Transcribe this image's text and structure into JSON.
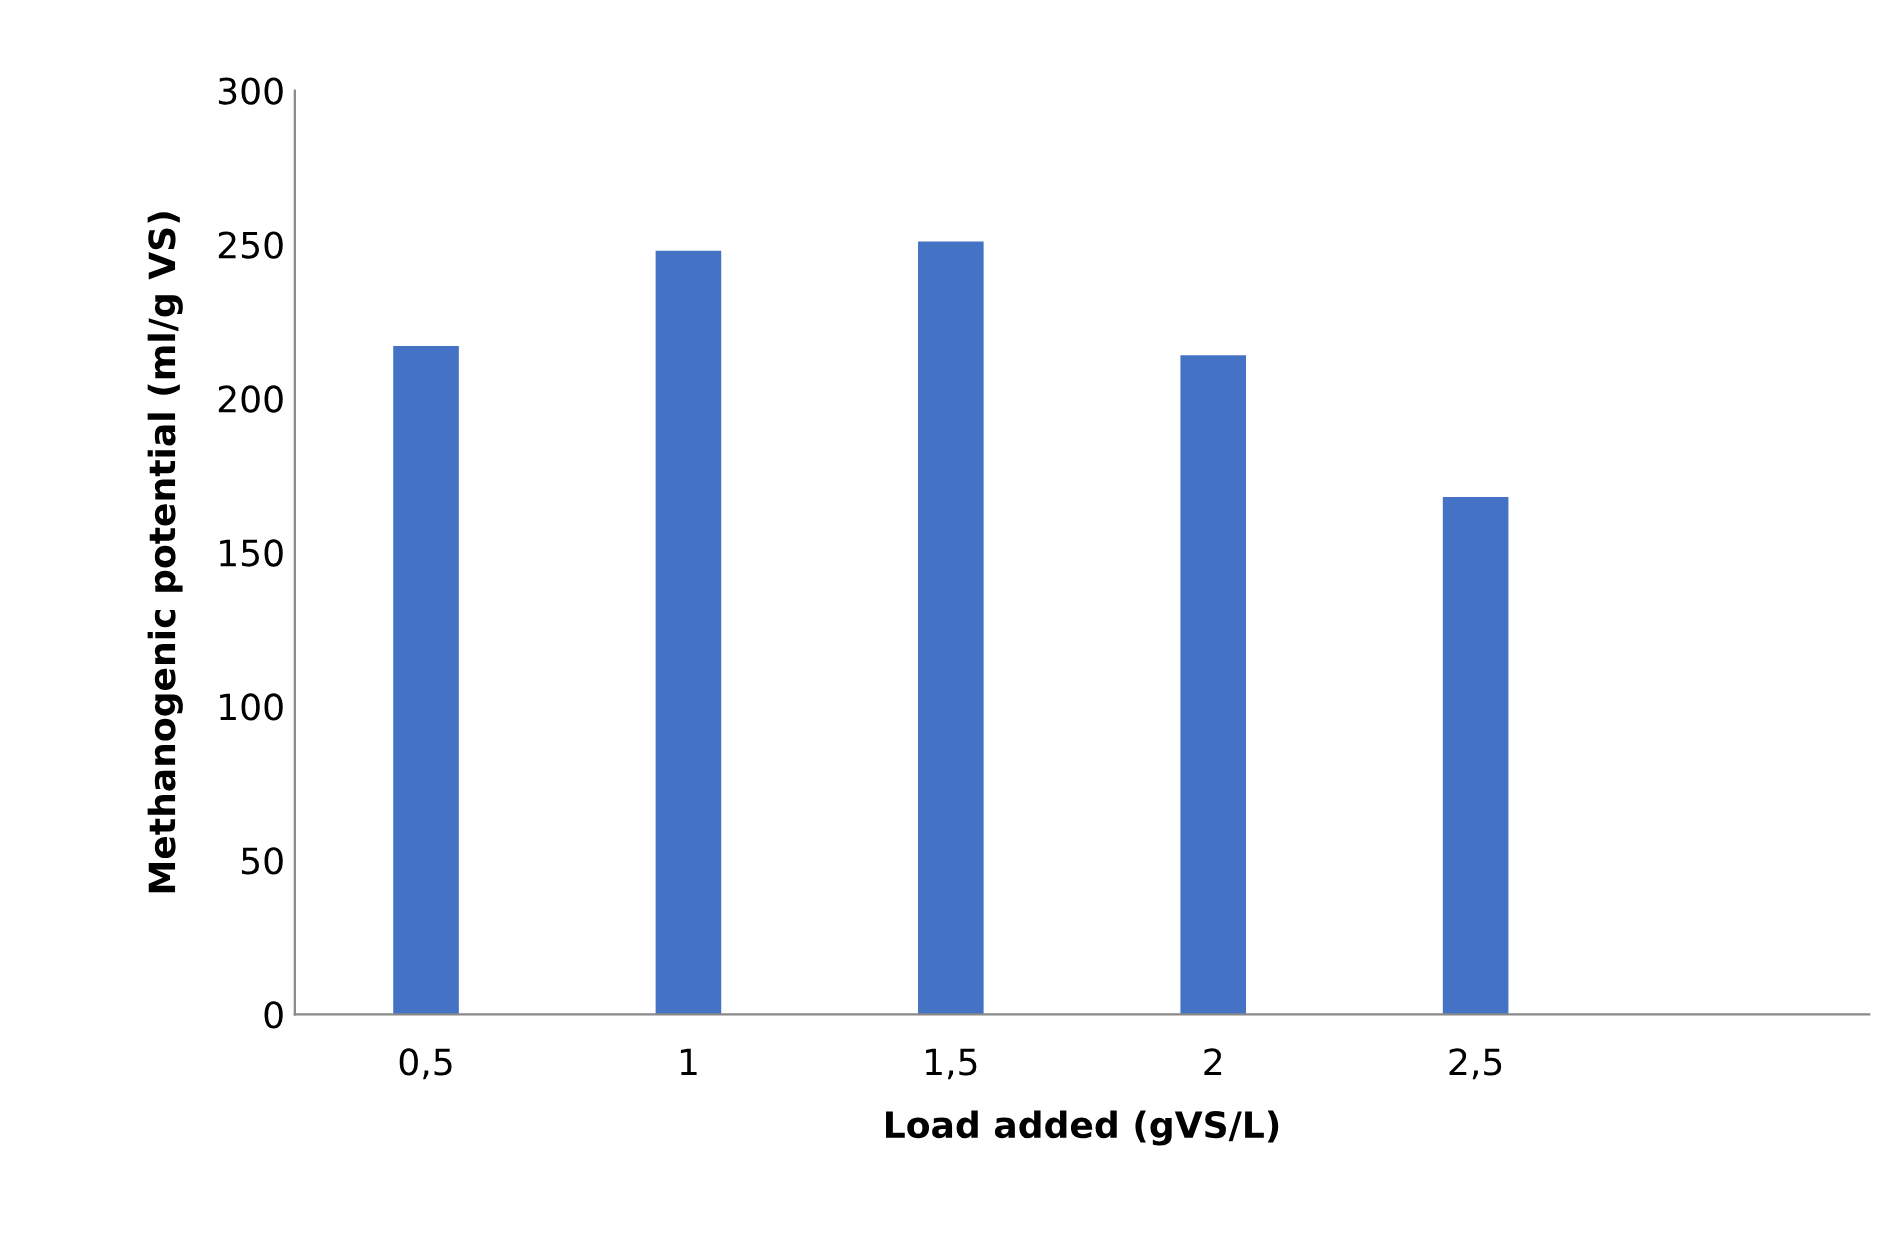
{
  "chart_data": {
    "type": "bar",
    "xlabel": "Load added (gVS/L)",
    "ylabel": "Methanogenic potential (ml/g VS)",
    "categories": [
      "0,5",
      "1",
      "1,5",
      "2",
      "2,5",
      null
    ],
    "values": [
      217,
      248,
      251,
      214,
      168,
      null
    ],
    "color": "#4472c4",
    "ylim": [
      0,
      300
    ],
    "yticks": [
      0,
      50,
      100,
      150,
      200,
      250,
      300
    ],
    "grid": false
  }
}
